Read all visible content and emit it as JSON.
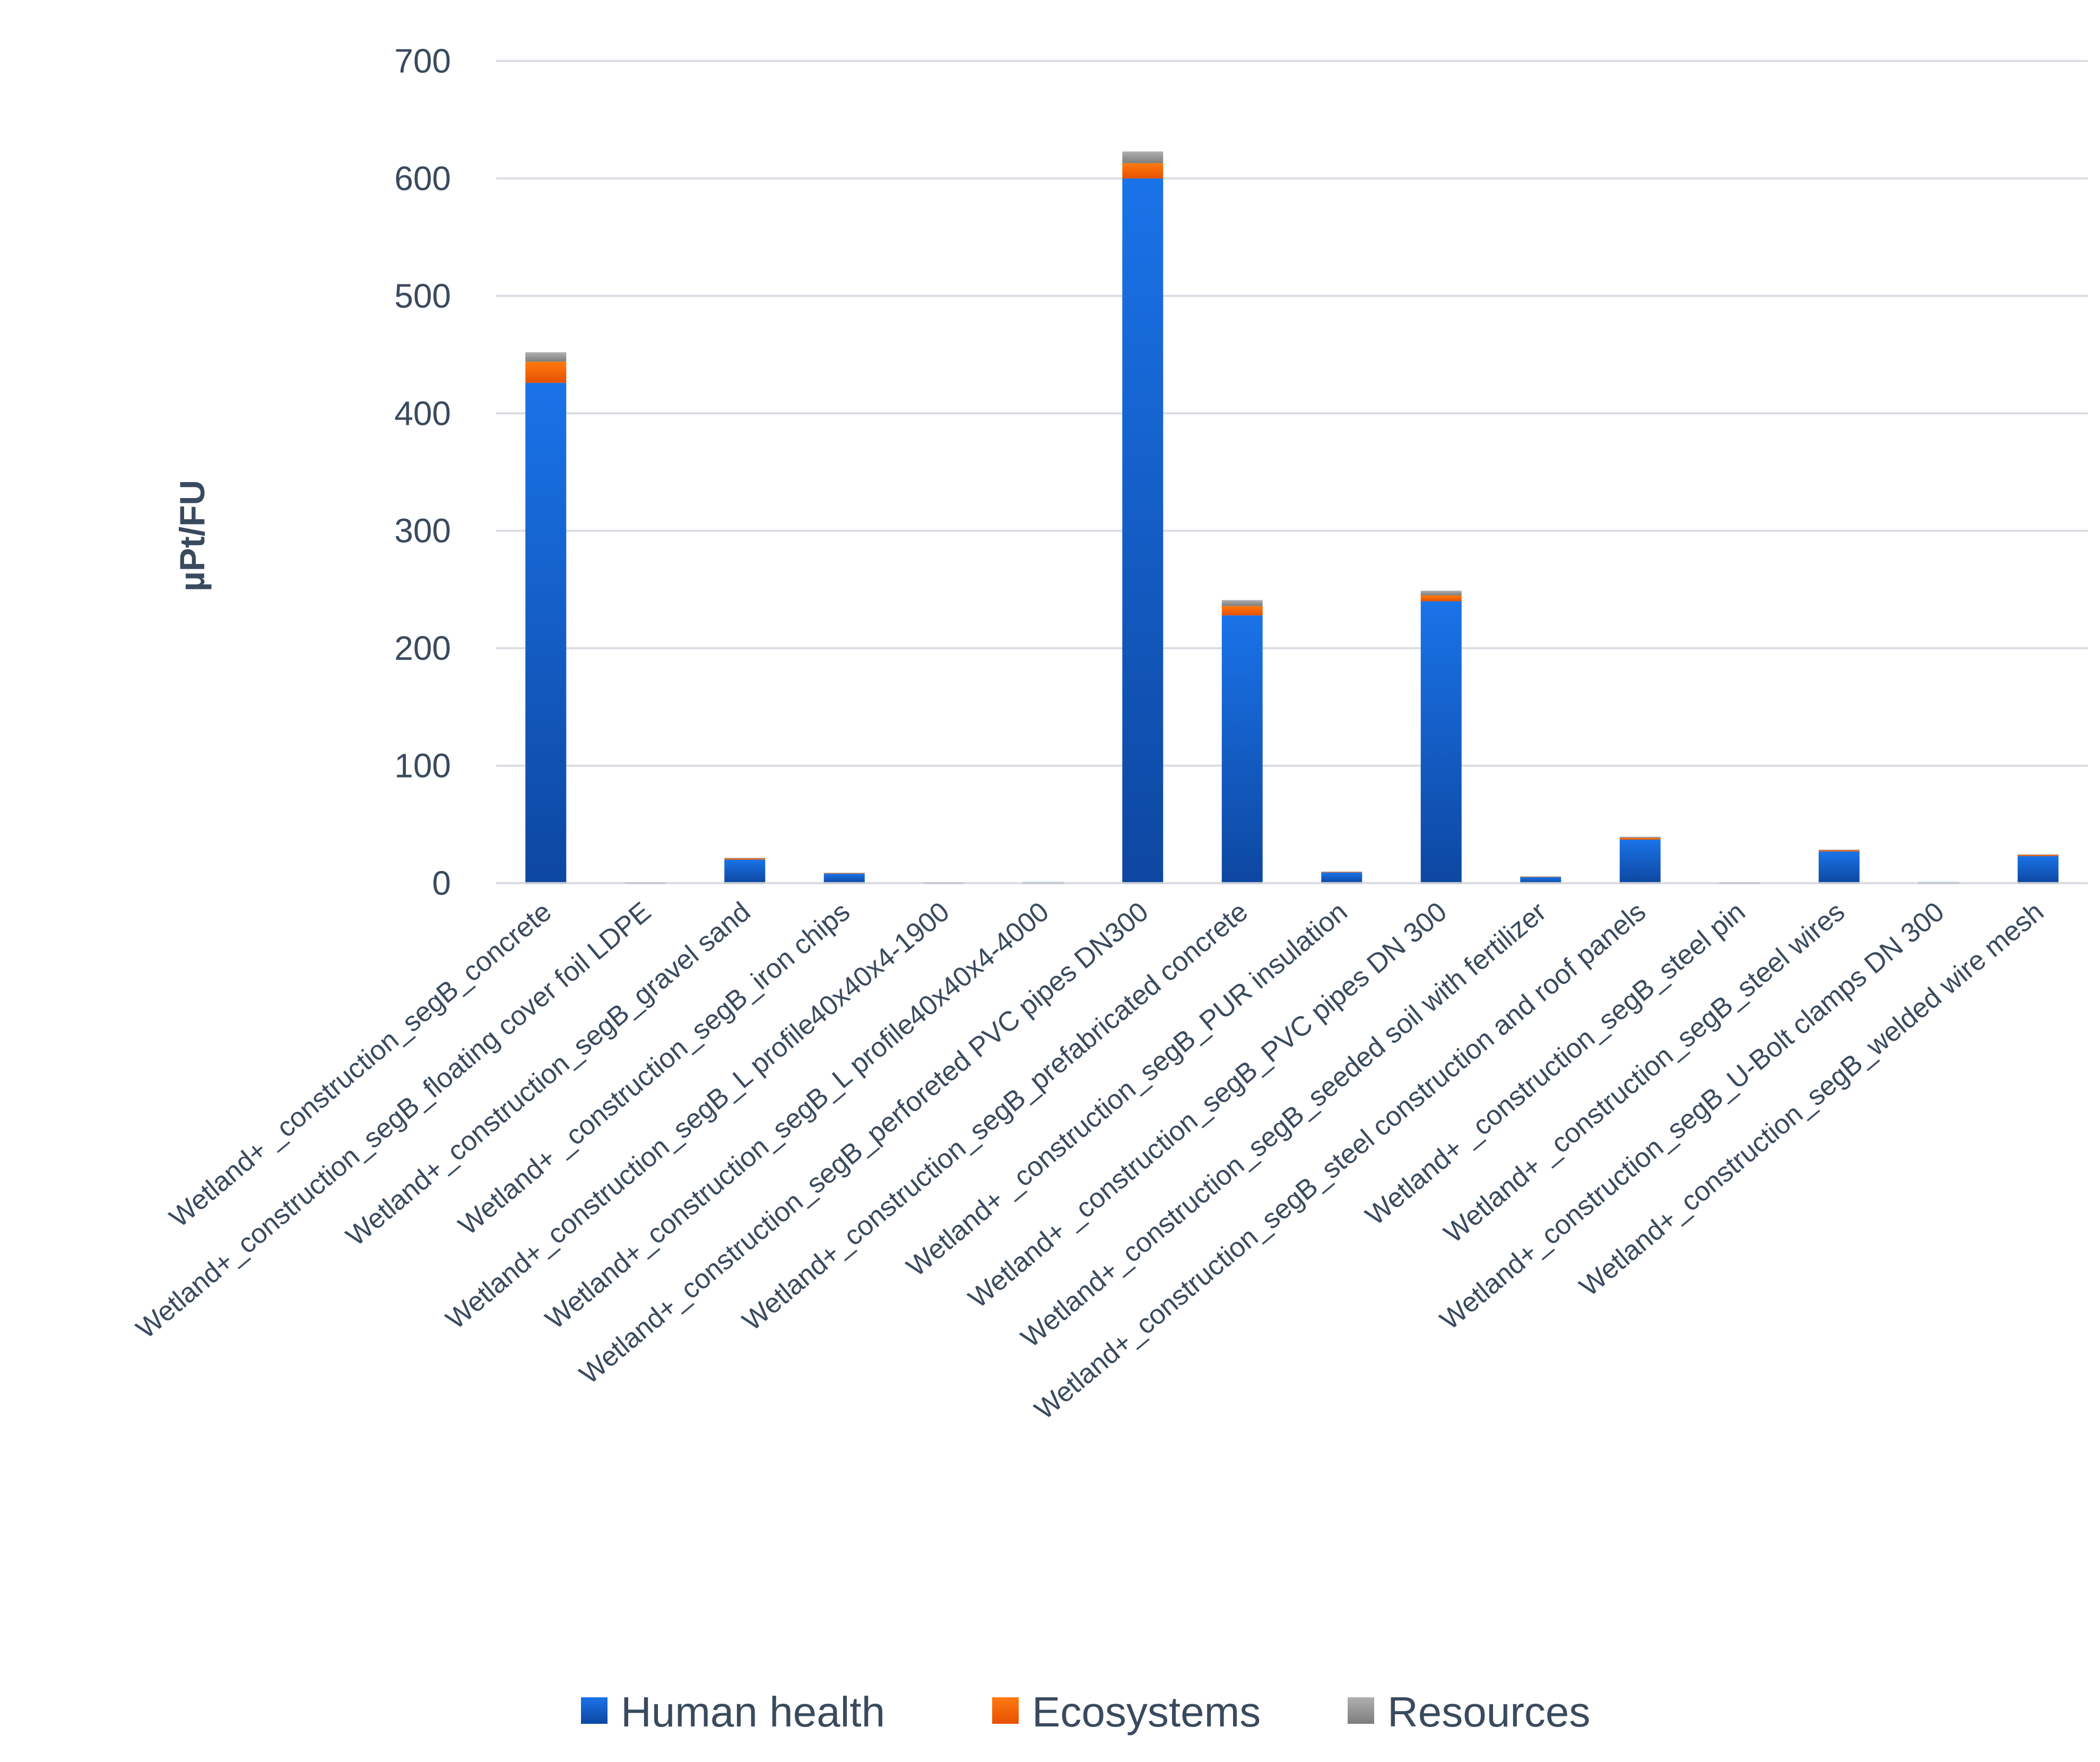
{
  "chart_data": {
    "type": "bar",
    "stacked": true,
    "title": "",
    "xlabel": "",
    "ylabel": "µPt/FU",
    "ylim": [
      0,
      700
    ],
    "yticks": [
      0,
      100,
      200,
      300,
      400,
      500,
      600,
      700
    ],
    "grid": true,
    "legend_position": "bottom",
    "categories": [
      "Wetland+ _construction_segB_concrete",
      "Wetland+_construction_segB_floating cover foil LDPE",
      "Wetland+_construction_segB_gravel sand",
      "Wetland+ _construction_segB_iron chips",
      "Wetland+_construction_segB_L profile40x40x4-1900",
      "Wetland+_construction_segB_L profile40x40x4-4000",
      "Wetland+_construction_segB_perforeted PVC pipes DN300",
      "Wetland+_construction_segB_prefabricated concrete",
      "Wetland+ _construction_segB_PUR insulation",
      "Wetland+ _construction_segB_PVC pipes DN 300",
      "Wetland+_construction_segB_seeded soil with fertilizer",
      "Wetland+_construction_segB_steel construction and roof panels",
      "Wetland+ _construction_segB_steel pin",
      "Wetland+ _construction_segB_steel wires",
      "Wetland+_construction_segB_U-Bolt clamps DN 300",
      "Wetland+_construction_segB_welded wire mesh"
    ],
    "series": [
      {
        "name": "Human health",
        "color": "#1565c0",
        "values": [
          426,
          0,
          20,
          8,
          0,
          1,
          600,
          228,
          9,
          240,
          5,
          37,
          0,
          27,
          1,
          23
        ]
      },
      {
        "name": "Ecosystems",
        "color": "#ff6a00",
        "values": [
          18,
          0,
          1,
          0.5,
          0,
          0,
          13,
          8,
          0.5,
          5,
          0.5,
          1.5,
          0,
          1,
          0,
          1
        ]
      },
      {
        "name": "Resources",
        "color": "#9e9e9e",
        "values": [
          8,
          0,
          0.5,
          0.3,
          0,
          0,
          10,
          5,
          0.3,
          4,
          0.2,
          1,
          0,
          0.5,
          0,
          0.5
        ]
      }
    ]
  }
}
